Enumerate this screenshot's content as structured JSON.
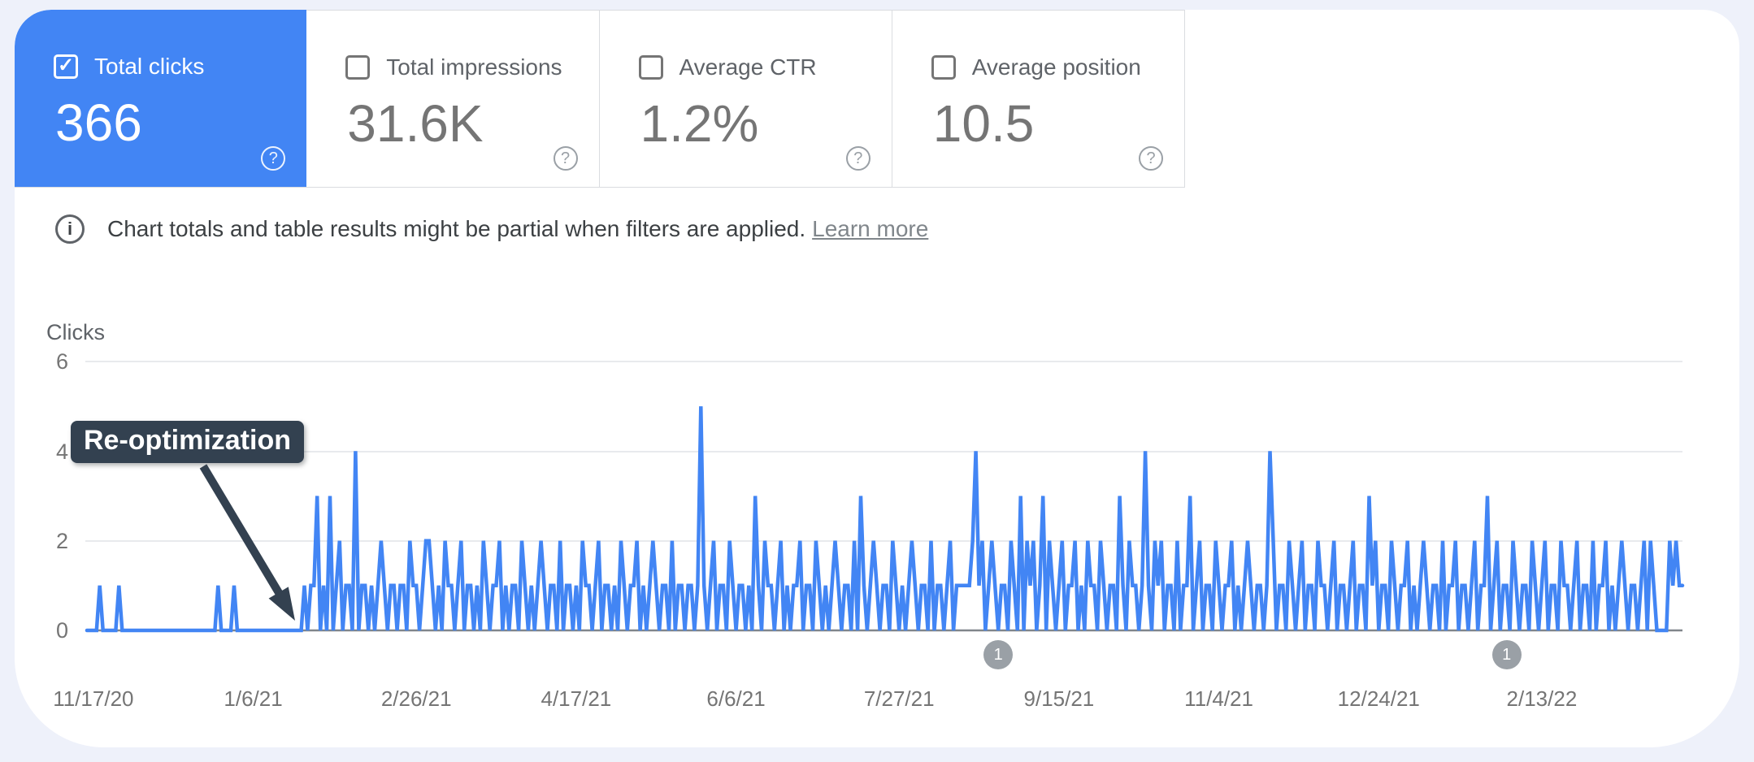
{
  "icons": {
    "check": "✓",
    "help": "?",
    "info": "i"
  },
  "colors": {
    "accent_blue": "#4285f4",
    "annotation_bg": "#334150",
    "marker_gray": "#9aa0a6",
    "page_bg": "#eef1fa",
    "panel_bg": "#ffffff"
  },
  "cards": [
    {
      "label": "Total clicks",
      "value": "366",
      "selected": true
    },
    {
      "label": "Total impressions",
      "value": "31.6K",
      "selected": false
    },
    {
      "label": "Average CTR",
      "value": "1.2%",
      "selected": false
    },
    {
      "label": "Average position",
      "value": "10.5",
      "selected": false
    }
  ],
  "notice": {
    "text": "Chart totals and table results might be partial when filters are applied.",
    "link": "Learn more"
  },
  "annotation": {
    "label": "Re-optimization"
  },
  "markers": [
    {
      "label": "1",
      "index": 285
    },
    {
      "label": "1",
      "index": 444
    }
  ],
  "chart_data": {
    "type": "line",
    "title": "",
    "ylabel": "Clicks",
    "xlabel": "",
    "ylim": [
      0,
      6
    ],
    "y_ticks": [
      6,
      4,
      2,
      0
    ],
    "grid": true,
    "legend_position": "none",
    "x_start_date": "11/15/20",
    "x_step_days": 1,
    "x_tick_labels": [
      "11/17/20",
      "1/6/21",
      "2/26/21",
      "4/17/21",
      "6/6/21",
      "7/27/21",
      "9/15/21",
      "11/4/21",
      "12/24/21",
      "2/13/22"
    ],
    "x_tick_indices": [
      2,
      52,
      103,
      153,
      203,
      254,
      304,
      354,
      404,
      455
    ],
    "series": [
      {
        "name": "Clicks",
        "color": "#4285f4",
        "values": [
          0,
          0,
          0,
          0,
          1,
          0,
          0,
          0,
          0,
          0,
          1,
          0,
          0,
          0,
          0,
          0,
          0,
          0,
          0,
          0,
          0,
          0,
          0,
          0,
          0,
          0,
          0,
          0,
          0,
          0,
          0,
          0,
          0,
          0,
          0,
          0,
          0,
          0,
          0,
          0,
          0,
          1,
          0,
          0,
          0,
          0,
          1,
          0,
          0,
          0,
          0,
          0,
          0,
          0,
          0,
          0,
          0,
          0,
          0,
          0,
          0,
          0,
          0,
          0,
          0,
          0,
          0,
          0,
          1,
          0,
          1,
          1,
          3,
          0,
          1,
          0,
          3,
          0,
          1,
          2,
          0,
          1,
          1,
          0,
          4,
          0,
          1,
          1,
          0,
          1,
          0,
          1,
          2,
          1,
          0,
          1,
          1,
          0,
          1,
          1,
          0,
          2,
          1,
          1,
          0,
          1,
          2,
          2,
          1,
          0,
          1,
          0,
          2,
          1,
          1,
          0,
          1,
          2,
          0,
          1,
          1,
          0,
          1,
          0,
          2,
          1,
          0,
          1,
          1,
          2,
          0,
          1,
          0,
          1,
          1,
          0,
          2,
          1,
          0,
          1,
          0,
          1,
          2,
          1,
          0,
          1,
          1,
          0,
          2,
          0,
          1,
          1,
          0,
          1,
          0,
          2,
          1,
          1,
          0,
          1,
          2,
          0,
          1,
          1,
          0,
          1,
          0,
          2,
          1,
          0,
          1,
          1,
          2,
          0,
          1,
          0,
          1,
          2,
          1,
          0,
          1,
          1,
          0,
          2,
          0,
          1,
          1,
          0,
          1,
          1,
          0,
          1,
          5,
          1,
          0,
          1,
          2,
          0,
          1,
          1,
          0,
          2,
          1,
          0,
          1,
          1,
          0,
          1,
          0,
          3,
          1,
          0,
          2,
          1,
          1,
          0,
          1,
          2,
          0,
          1,
          0,
          1,
          1,
          2,
          0,
          1,
          1,
          0,
          2,
          1,
          0,
          1,
          0,
          1,
          2,
          1,
          0,
          1,
          1,
          0,
          2,
          0,
          3,
          1,
          0,
          1,
          2,
          1,
          0,
          1,
          1,
          0,
          2,
          1,
          0,
          1,
          0,
          1,
          2,
          1,
          0,
          1,
          1,
          0,
          2,
          0,
          1,
          1,
          0,
          1,
          2,
          0,
          1,
          1,
          1,
          1,
          1,
          2,
          4,
          1,
          2,
          0,
          1,
          2,
          1,
          0,
          1,
          1,
          0,
          2,
          1,
          0,
          3,
          0,
          2,
          1,
          2,
          0,
          1,
          3,
          0,
          2,
          1,
          0,
          1,
          2,
          0,
          1,
          1,
          2,
          0,
          1,
          0,
          2,
          1,
          1,
          0,
          2,
          1,
          0,
          1,
          1,
          0,
          3,
          1,
          0,
          2,
          1,
          1,
          0,
          1,
          4,
          1,
          0,
          2,
          1,
          2,
          0,
          1,
          1,
          0,
          2,
          0,
          1,
          1,
          3,
          0,
          1,
          2,
          0,
          1,
          1,
          0,
          2,
          1,
          0,
          1,
          1,
          2,
          0,
          1,
          0,
          1,
          2,
          1,
          0,
          1,
          1,
          0,
          1,
          4,
          2,
          0,
          1,
          1,
          0,
          2,
          1,
          0,
          1,
          2,
          0,
          1,
          1,
          0,
          2,
          1,
          1,
          0,
          1,
          2,
          0,
          1,
          1,
          0,
          1,
          2,
          0,
          1,
          1,
          0,
          3,
          1,
          2,
          0,
          1,
          1,
          0,
          2,
          1,
          0,
          1,
          1,
          2,
          0,
          1,
          0,
          1,
          2,
          1,
          0,
          1,
          1,
          0,
          2,
          0,
          1,
          1,
          2,
          0,
          1,
          1,
          0,
          1,
          2,
          0,
          1,
          1,
          3,
          0,
          1,
          2,
          0,
          1,
          1,
          0,
          2,
          1,
          0,
          1,
          1,
          0,
          2,
          1,
          0,
          1,
          2,
          0,
          1,
          1,
          0,
          2,
          1,
          1,
          0,
          1,
          2,
          0,
          1,
          1,
          0,
          2,
          0,
          1,
          1,
          2,
          0,
          1,
          0,
          1,
          2,
          1,
          0,
          1,
          1,
          0,
          1,
          2,
          0,
          2,
          1,
          0,
          0,
          0,
          0,
          2,
          1,
          2,
          1,
          1
        ]
      }
    ]
  }
}
